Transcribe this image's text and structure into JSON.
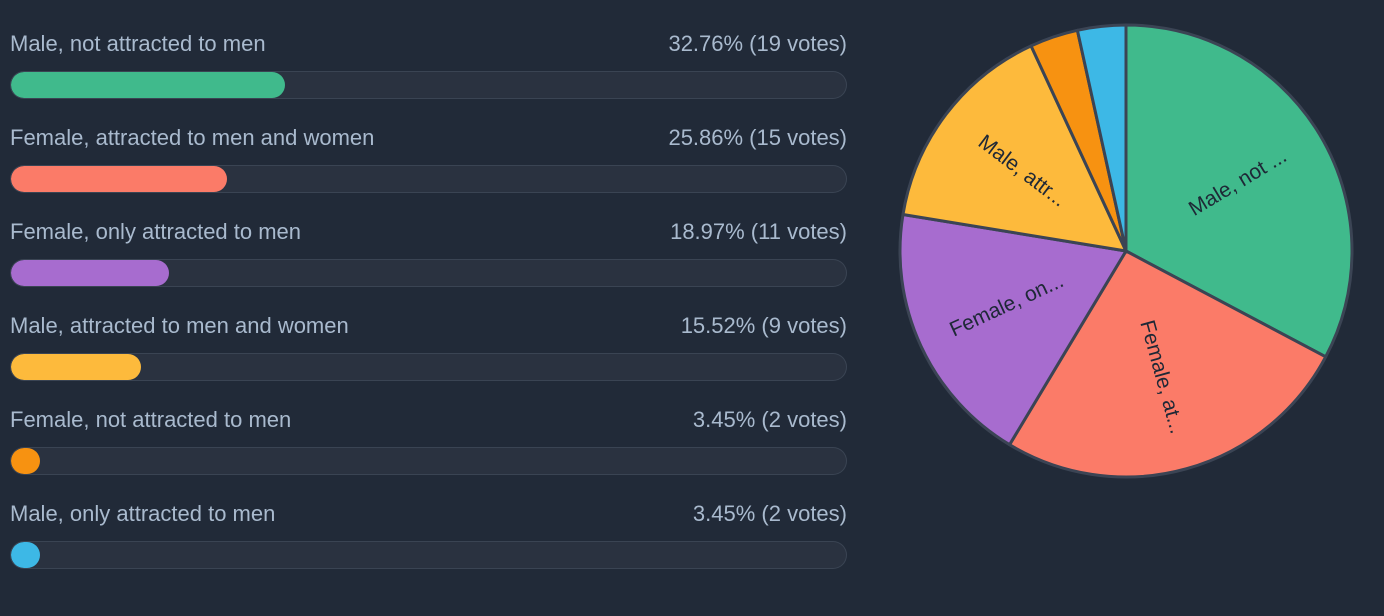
{
  "page": {
    "background_color": "#212A38",
    "text_color": "#A9BACE"
  },
  "poll": {
    "options": [
      {
        "label": "Male, not attracted to men",
        "result_text": "32.76% (19 votes)",
        "percent": 32.76,
        "votes": 19,
        "color": "#40BA8C"
      },
      {
        "label": "Female, attracted to men and women",
        "result_text": "25.86% (15 votes)",
        "percent": 25.86,
        "votes": 15,
        "color": "#FB7B68"
      },
      {
        "label": "Female, only attracted to men",
        "result_text": "18.97% (11 votes)",
        "percent": 18.97,
        "votes": 11,
        "color": "#A76CCF"
      },
      {
        "label": "Male, attracted to men and women",
        "result_text": "15.52% (9 votes)",
        "percent": 15.52,
        "votes": 9,
        "color": "#FDBA3C"
      },
      {
        "label": "Female, not attracted to men",
        "result_text": "3.45% (2 votes)",
        "percent": 3.45,
        "votes": 2,
        "color": "#F79211"
      },
      {
        "label": "Male, only attracted to men",
        "result_text": "3.45% (2 votes)",
        "percent": 3.45,
        "votes": 2,
        "color": "#3DB8E6"
      }
    ]
  },
  "chart_data": {
    "type": "pie",
    "title": "",
    "labels": [
      "Male, not attracted to men",
      "Female, attracted to men and women",
      "Female, only attracted to men",
      "Male, attracted to men and women",
      "Female, not attracted to men",
      "Male, only attracted to men"
    ],
    "slice_labels_visible": [
      "Male, not ...",
      "Female, at...",
      "Female, on...",
      "Male, attr...",
      "",
      ""
    ],
    "values": [
      32.76,
      25.86,
      18.97,
      15.52,
      3.45,
      3.45
    ],
    "votes": [
      19,
      15,
      11,
      9,
      2,
      2
    ],
    "colors": [
      "#40BA8C",
      "#FB7B68",
      "#A76CCF",
      "#FDBA3C",
      "#F79211",
      "#3DB8E6"
    ],
    "start_angle_deg": 0,
    "direction": "clockwise",
    "stroke_color": "#3B4454",
    "slice_label_color": "#1E2836",
    "legend_position": "none"
  }
}
